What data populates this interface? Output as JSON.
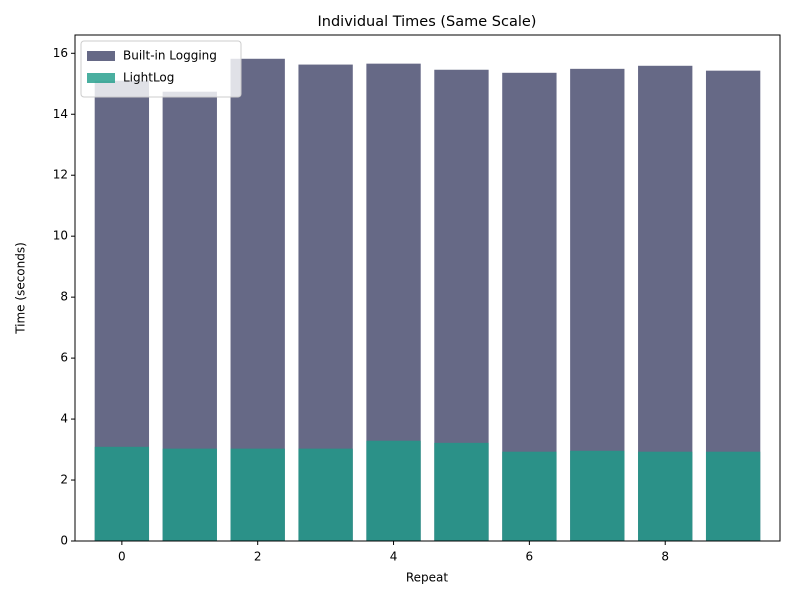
{
  "chart_data": {
    "type": "bar",
    "title": "Individual Times (Same Scale)",
    "xlabel": "Repeat",
    "ylabel": "Time (seconds)",
    "x": [
      0,
      1,
      2,
      3,
      4,
      5,
      6,
      7,
      8,
      9
    ],
    "series": [
      {
        "name": "Built-in Logging",
        "color": "#404468",
        "values": [
          15.1,
          14.74,
          15.82,
          15.63,
          15.66,
          15.46,
          15.36,
          15.49,
          15.59,
          15.43
        ]
      },
      {
        "name": "LightLog",
        "color": "#1d9b88",
        "values": [
          3.09,
          3.03,
          3.03,
          3.03,
          3.29,
          3.22,
          2.93,
          2.96,
          2.93,
          2.93
        ]
      }
    ],
    "alpha": 0.8,
    "bar_width": 0.8,
    "xlim": [
      -0.69,
      9.69
    ],
    "xticks": [
      0,
      2,
      4,
      6,
      8
    ],
    "ylim": [
      0,
      16.6
    ],
    "yticks": [
      0,
      2,
      4,
      6,
      8,
      10,
      12,
      14,
      16
    ],
    "legend": "upper left",
    "grid": false
  }
}
